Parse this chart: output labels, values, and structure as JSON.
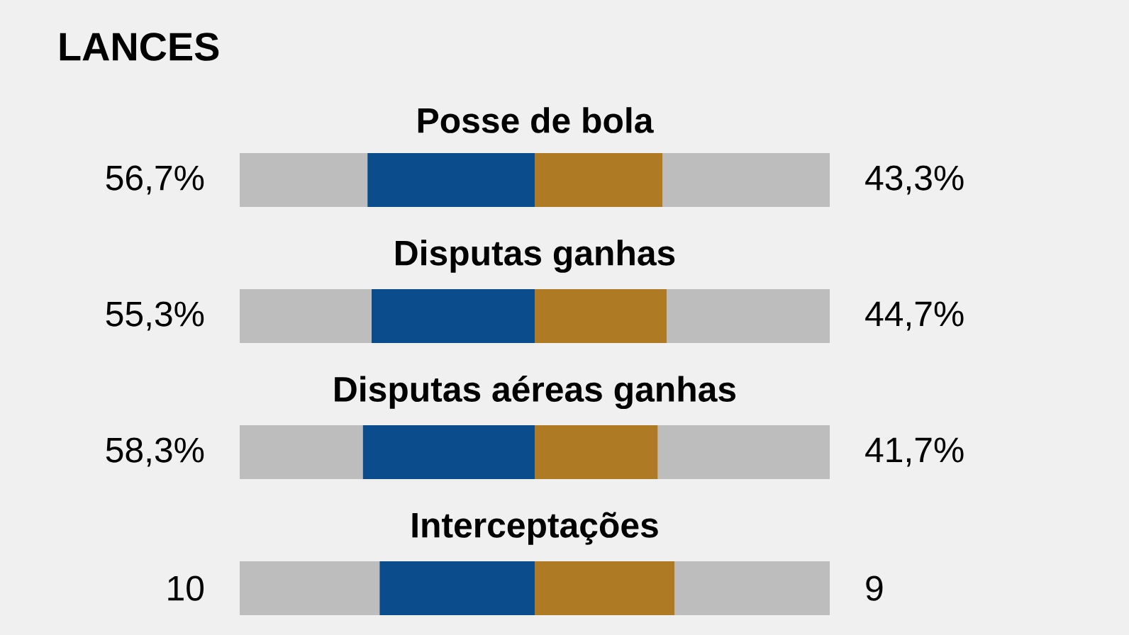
{
  "chart_data": {
    "type": "bar",
    "orientation": "horizontal",
    "stacked": true,
    "title": "LANCES",
    "categories": [
      "Posse de bola",
      "Disputas ganhas",
      "Disputas aéreas ganhas",
      "Interceptações"
    ],
    "series": [
      {
        "color": "#bdbdbd",
        "values": [
          43.3,
          44.7,
          41.7,
          47.4
        ]
      },
      {
        "color": "#0b4d8c",
        "values": [
          56.7,
          55.3,
          58.3,
          52.6
        ],
        "value_labels": [
          "56,7%",
          "55,3%",
          "58,3%",
          null
        ]
      },
      {
        "color": "#ae7a23",
        "values": [
          43.3,
          44.7,
          41.7,
          47.4
        ],
        "value_labels": [
          "43,3%",
          "44,7%",
          "41,7%",
          null
        ]
      },
      {
        "color": "#bdbdbd",
        "values": [
          56.7,
          55.3,
          58.3,
          52.6
        ]
      }
    ],
    "annotations": [
      {
        "text": "10",
        "x": 0,
        "y": "Interceptações"
      },
      {
        "text": "9",
        "x": 200,
        "y": "Interceptações"
      }
    ],
    "xlim": [
      0,
      200
    ],
    "tick_labels": false
  }
}
